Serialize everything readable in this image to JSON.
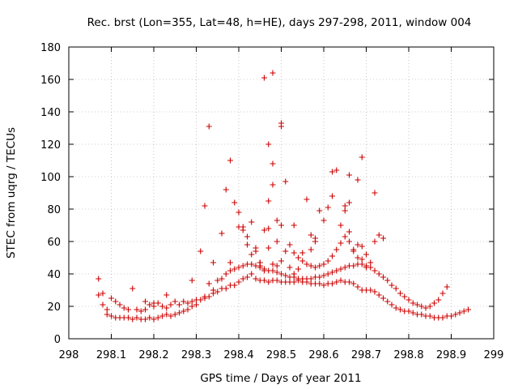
{
  "chart_data": {
    "type": "scatter",
    "title": "Rec. brst (Lon=355, Lat=48, h=HE), days 297-298, 2011, window 004",
    "xlabel": "GPS time / Days of year 2011",
    "ylabel": "STEC from uqrg / TECUs",
    "xlim": [
      298,
      299
    ],
    "ylim": [
      0,
      180
    ],
    "x_ticks": [
      298,
      298.1,
      298.2,
      298.3,
      298.4,
      298.5,
      298.6,
      298.7,
      298.8,
      298.9,
      299
    ],
    "x_tick_labels": [
      "298",
      "298.1",
      "298.2",
      "298.3",
      "298.4",
      "298.5",
      "298.6",
      "298.7",
      "298.8",
      "298.9",
      "299"
    ],
    "y_ticks": [
      0,
      20,
      40,
      60,
      80,
      100,
      120,
      140,
      160,
      180
    ],
    "y_tick_labels": [
      "0",
      "20",
      "40",
      "60",
      "80",
      "100",
      "120",
      "140",
      "160",
      "180"
    ],
    "grid": true,
    "marker": "+",
    "color": "#cc0000",
    "series": [
      {
        "points": [
          [
            298.07,
            37
          ],
          [
            298.07,
            27
          ],
          [
            298.08,
            28
          ],
          [
            298.08,
            21
          ],
          [
            298.09,
            18
          ],
          [
            298.1,
            25
          ],
          [
            298.11,
            23
          ],
          [
            298.12,
            21
          ],
          [
            298.13,
            19
          ],
          [
            298.14,
            18
          ],
          [
            298.15,
            31
          ],
          [
            298.16,
            18
          ],
          [
            298.17,
            17
          ],
          [
            298.18,
            18
          ],
          [
            298.18,
            23
          ],
          [
            298.19,
            21
          ],
          [
            298.2,
            20
          ],
          [
            298.2,
            22
          ],
          [
            298.21,
            22
          ],
          [
            298.22,
            20
          ],
          [
            298.23,
            19
          ],
          [
            298.23,
            27
          ],
          [
            298.24,
            21
          ],
          [
            298.25,
            23
          ],
          [
            298.26,
            21
          ],
          [
            298.27,
            23
          ],
          [
            298.28,
            22
          ],
          [
            298.29,
            23
          ],
          [
            298.29,
            36
          ],
          [
            298.3,
            24
          ],
          [
            298.31,
            54
          ],
          [
            298.32,
            26
          ],
          [
            298.33,
            26
          ],
          [
            298.34,
            28
          ],
          [
            298.35,
            29
          ],
          [
            298.36,
            31
          ],
          [
            298.37,
            31
          ],
          [
            298.38,
            33
          ],
          [
            298.39,
            33
          ],
          [
            298.4,
            35
          ],
          [
            298.41,
            37
          ],
          [
            298.42,
            38
          ],
          [
            298.43,
            40
          ],
          [
            298.44,
            37
          ],
          [
            298.45,
            36
          ],
          [
            298.46,
            36
          ],
          [
            298.47,
            35
          ],
          [
            298.48,
            36
          ],
          [
            298.49,
            36
          ],
          [
            298.5,
            35
          ],
          [
            298.51,
            35
          ],
          [
            298.52,
            35
          ],
          [
            298.53,
            35
          ],
          [
            298.54,
            36
          ],
          [
            298.55,
            35
          ],
          [
            298.56,
            35
          ],
          [
            298.57,
            34
          ],
          [
            298.58,
            34
          ],
          [
            298.59,
            34
          ],
          [
            298.6,
            33
          ],
          [
            298.61,
            34
          ],
          [
            298.62,
            34
          ],
          [
            298.63,
            35
          ],
          [
            298.64,
            36
          ],
          [
            298.65,
            35
          ],
          [
            298.66,
            35
          ],
          [
            298.67,
            34
          ],
          [
            298.68,
            32
          ],
          [
            298.69,
            30
          ],
          [
            298.7,
            30
          ],
          [
            298.71,
            30
          ],
          [
            298.72,
            29
          ],
          [
            298.73,
            27
          ],
          [
            298.74,
            25
          ],
          [
            298.75,
            23
          ],
          [
            298.76,
            21
          ],
          [
            298.77,
            19
          ],
          [
            298.78,
            18
          ],
          [
            298.79,
            17
          ],
          [
            298.8,
            17
          ],
          [
            298.81,
            16
          ],
          [
            298.82,
            15
          ],
          [
            298.83,
            15
          ],
          [
            298.84,
            14
          ],
          [
            298.85,
            14
          ],
          [
            298.86,
            13
          ],
          [
            298.87,
            13
          ],
          [
            298.88,
            13
          ],
          [
            298.89,
            14
          ],
          [
            298.9,
            14
          ],
          [
            298.91,
            15
          ],
          [
            298.92,
            16
          ],
          [
            298.93,
            17
          ],
          [
            298.94,
            18
          ]
        ]
      },
      {
        "points": [
          [
            298.09,
            15
          ],
          [
            298.1,
            14
          ],
          [
            298.11,
            13
          ],
          [
            298.12,
            13
          ],
          [
            298.13,
            13
          ],
          [
            298.14,
            13
          ],
          [
            298.15,
            12
          ],
          [
            298.16,
            13
          ],
          [
            298.17,
            12
          ],
          [
            298.18,
            12
          ],
          [
            298.19,
            13
          ],
          [
            298.2,
            12
          ],
          [
            298.21,
            13
          ],
          [
            298.22,
            14
          ],
          [
            298.23,
            15
          ],
          [
            298.24,
            14
          ],
          [
            298.25,
            15
          ],
          [
            298.26,
            16
          ],
          [
            298.27,
            17
          ],
          [
            298.28,
            18
          ],
          [
            298.29,
            20
          ],
          [
            298.3,
            21
          ],
          [
            298.31,
            24
          ],
          [
            298.32,
            25
          ],
          [
            298.33,
            34
          ],
          [
            298.34,
            30
          ],
          [
            298.35,
            36
          ],
          [
            298.36,
            37
          ],
          [
            298.37,
            40
          ],
          [
            298.38,
            42
          ],
          [
            298.39,
            43
          ],
          [
            298.4,
            44
          ],
          [
            298.41,
            45
          ],
          [
            298.42,
            46
          ],
          [
            298.43,
            46
          ],
          [
            298.44,
            45
          ],
          [
            298.45,
            44
          ],
          [
            298.46,
            43
          ],
          [
            298.47,
            42
          ],
          [
            298.48,
            42
          ],
          [
            298.49,
            41
          ],
          [
            298.5,
            40
          ],
          [
            298.51,
            39
          ],
          [
            298.52,
            38
          ],
          [
            298.53,
            38
          ],
          [
            298.54,
            37
          ],
          [
            298.55,
            37
          ],
          [
            298.56,
            37
          ],
          [
            298.57,
            37
          ],
          [
            298.58,
            38
          ],
          [
            298.59,
            38
          ],
          [
            298.6,
            39
          ],
          [
            298.61,
            40
          ],
          [
            298.62,
            41
          ],
          [
            298.63,
            42
          ],
          [
            298.64,
            43
          ],
          [
            298.65,
            44
          ],
          [
            298.66,
            45
          ],
          [
            298.67,
            45
          ],
          [
            298.68,
            46
          ],
          [
            298.69,
            46
          ],
          [
            298.7,
            45
          ],
          [
            298.71,
            44
          ],
          [
            298.72,
            42
          ],
          [
            298.73,
            40
          ],
          [
            298.74,
            38
          ],
          [
            298.75,
            36
          ],
          [
            298.76,
            33
          ],
          [
            298.77,
            31
          ],
          [
            298.78,
            28
          ],
          [
            298.79,
            26
          ],
          [
            298.8,
            24
          ],
          [
            298.81,
            22
          ],
          [
            298.82,
            21
          ],
          [
            298.83,
            20
          ],
          [
            298.84,
            19
          ],
          [
            298.85,
            20
          ],
          [
            298.86,
            22
          ],
          [
            298.87,
            24
          ],
          [
            298.88,
            28
          ],
          [
            298.89,
            32
          ]
        ]
      },
      {
        "points": [
          [
            298.36,
            65
          ],
          [
            298.37,
            92
          ],
          [
            298.38,
            110
          ],
          [
            298.38,
            47
          ],
          [
            298.39,
            84
          ],
          [
            298.4,
            78
          ],
          [
            298.4,
            69
          ],
          [
            298.41,
            69
          ],
          [
            298.42,
            58
          ],
          [
            298.43,
            52
          ],
          [
            298.44,
            56
          ],
          [
            298.45,
            47
          ],
          [
            298.46,
            42
          ],
          [
            298.47,
            68
          ],
          [
            298.47,
            85
          ],
          [
            298.48,
            95
          ],
          [
            298.49,
            60
          ],
          [
            298.5,
            48
          ],
          [
            298.51,
            97
          ],
          [
            298.52,
            58
          ],
          [
            298.53,
            53
          ],
          [
            298.54,
            50
          ],
          [
            298.55,
            48
          ],
          [
            298.56,
            46
          ],
          [
            298.57,
            45
          ],
          [
            298.58,
            44
          ],
          [
            298.59,
            45
          ],
          [
            298.6,
            46
          ],
          [
            298.61,
            48
          ],
          [
            298.62,
            51
          ],
          [
            298.63,
            55
          ],
          [
            298.64,
            59
          ],
          [
            298.65,
            63
          ],
          [
            298.66,
            66
          ],
          [
            298.67,
            54
          ],
          [
            298.68,
            58
          ],
          [
            298.69,
            57
          ],
          [
            298.7,
            52
          ]
        ]
      },
      {
        "points": [
          [
            298.32,
            82
          ],
          [
            298.34,
            47
          ],
          [
            298.41,
            67
          ],
          [
            298.42,
            63
          ],
          [
            298.43,
            72
          ],
          [
            298.44,
            54
          ],
          [
            298.45,
            47
          ],
          [
            298.46,
            67
          ],
          [
            298.47,
            56
          ],
          [
            298.48,
            46
          ],
          [
            298.49,
            45
          ],
          [
            298.5,
            70
          ],
          [
            298.51,
            54
          ],
          [
            298.52,
            44
          ],
          [
            298.53,
            40
          ],
          [
            298.54,
            43
          ],
          [
            298.55,
            53
          ],
          [
            298.56,
            86
          ],
          [
            298.57,
            64
          ],
          [
            298.58,
            60
          ],
          [
            298.59,
            79
          ],
          [
            298.6,
            73
          ],
          [
            298.61,
            81
          ],
          [
            298.62,
            88
          ],
          [
            298.62,
            103
          ],
          [
            298.63,
            104
          ],
          [
            298.64,
            70
          ],
          [
            298.65,
            82
          ],
          [
            298.66,
            60
          ],
          [
            298.67,
            55
          ],
          [
            298.68,
            50
          ],
          [
            298.69,
            49
          ],
          [
            298.7,
            44
          ],
          [
            298.71,
            47
          ],
          [
            298.72,
            60
          ]
        ]
      },
      {
        "points": [
          [
            298.33,
            131
          ],
          [
            298.46,
            161
          ],
          [
            298.47,
            120
          ],
          [
            298.48,
            164
          ],
          [
            298.48,
            108
          ],
          [
            298.5,
            133
          ],
          [
            298.5,
            131
          ],
          [
            298.66,
            101
          ],
          [
            298.68,
            98
          ],
          [
            298.69,
            112
          ],
          [
            298.72,
            90
          ],
          [
            298.73,
            64
          ],
          [
            298.74,
            62
          ],
          [
            298.65,
            79
          ],
          [
            298.66,
            84
          ],
          [
            298.58,
            62
          ],
          [
            298.57,
            55
          ],
          [
            298.53,
            70
          ],
          [
            298.49,
            73
          ],
          [
            298.45,
            45
          ]
        ]
      }
    ]
  }
}
